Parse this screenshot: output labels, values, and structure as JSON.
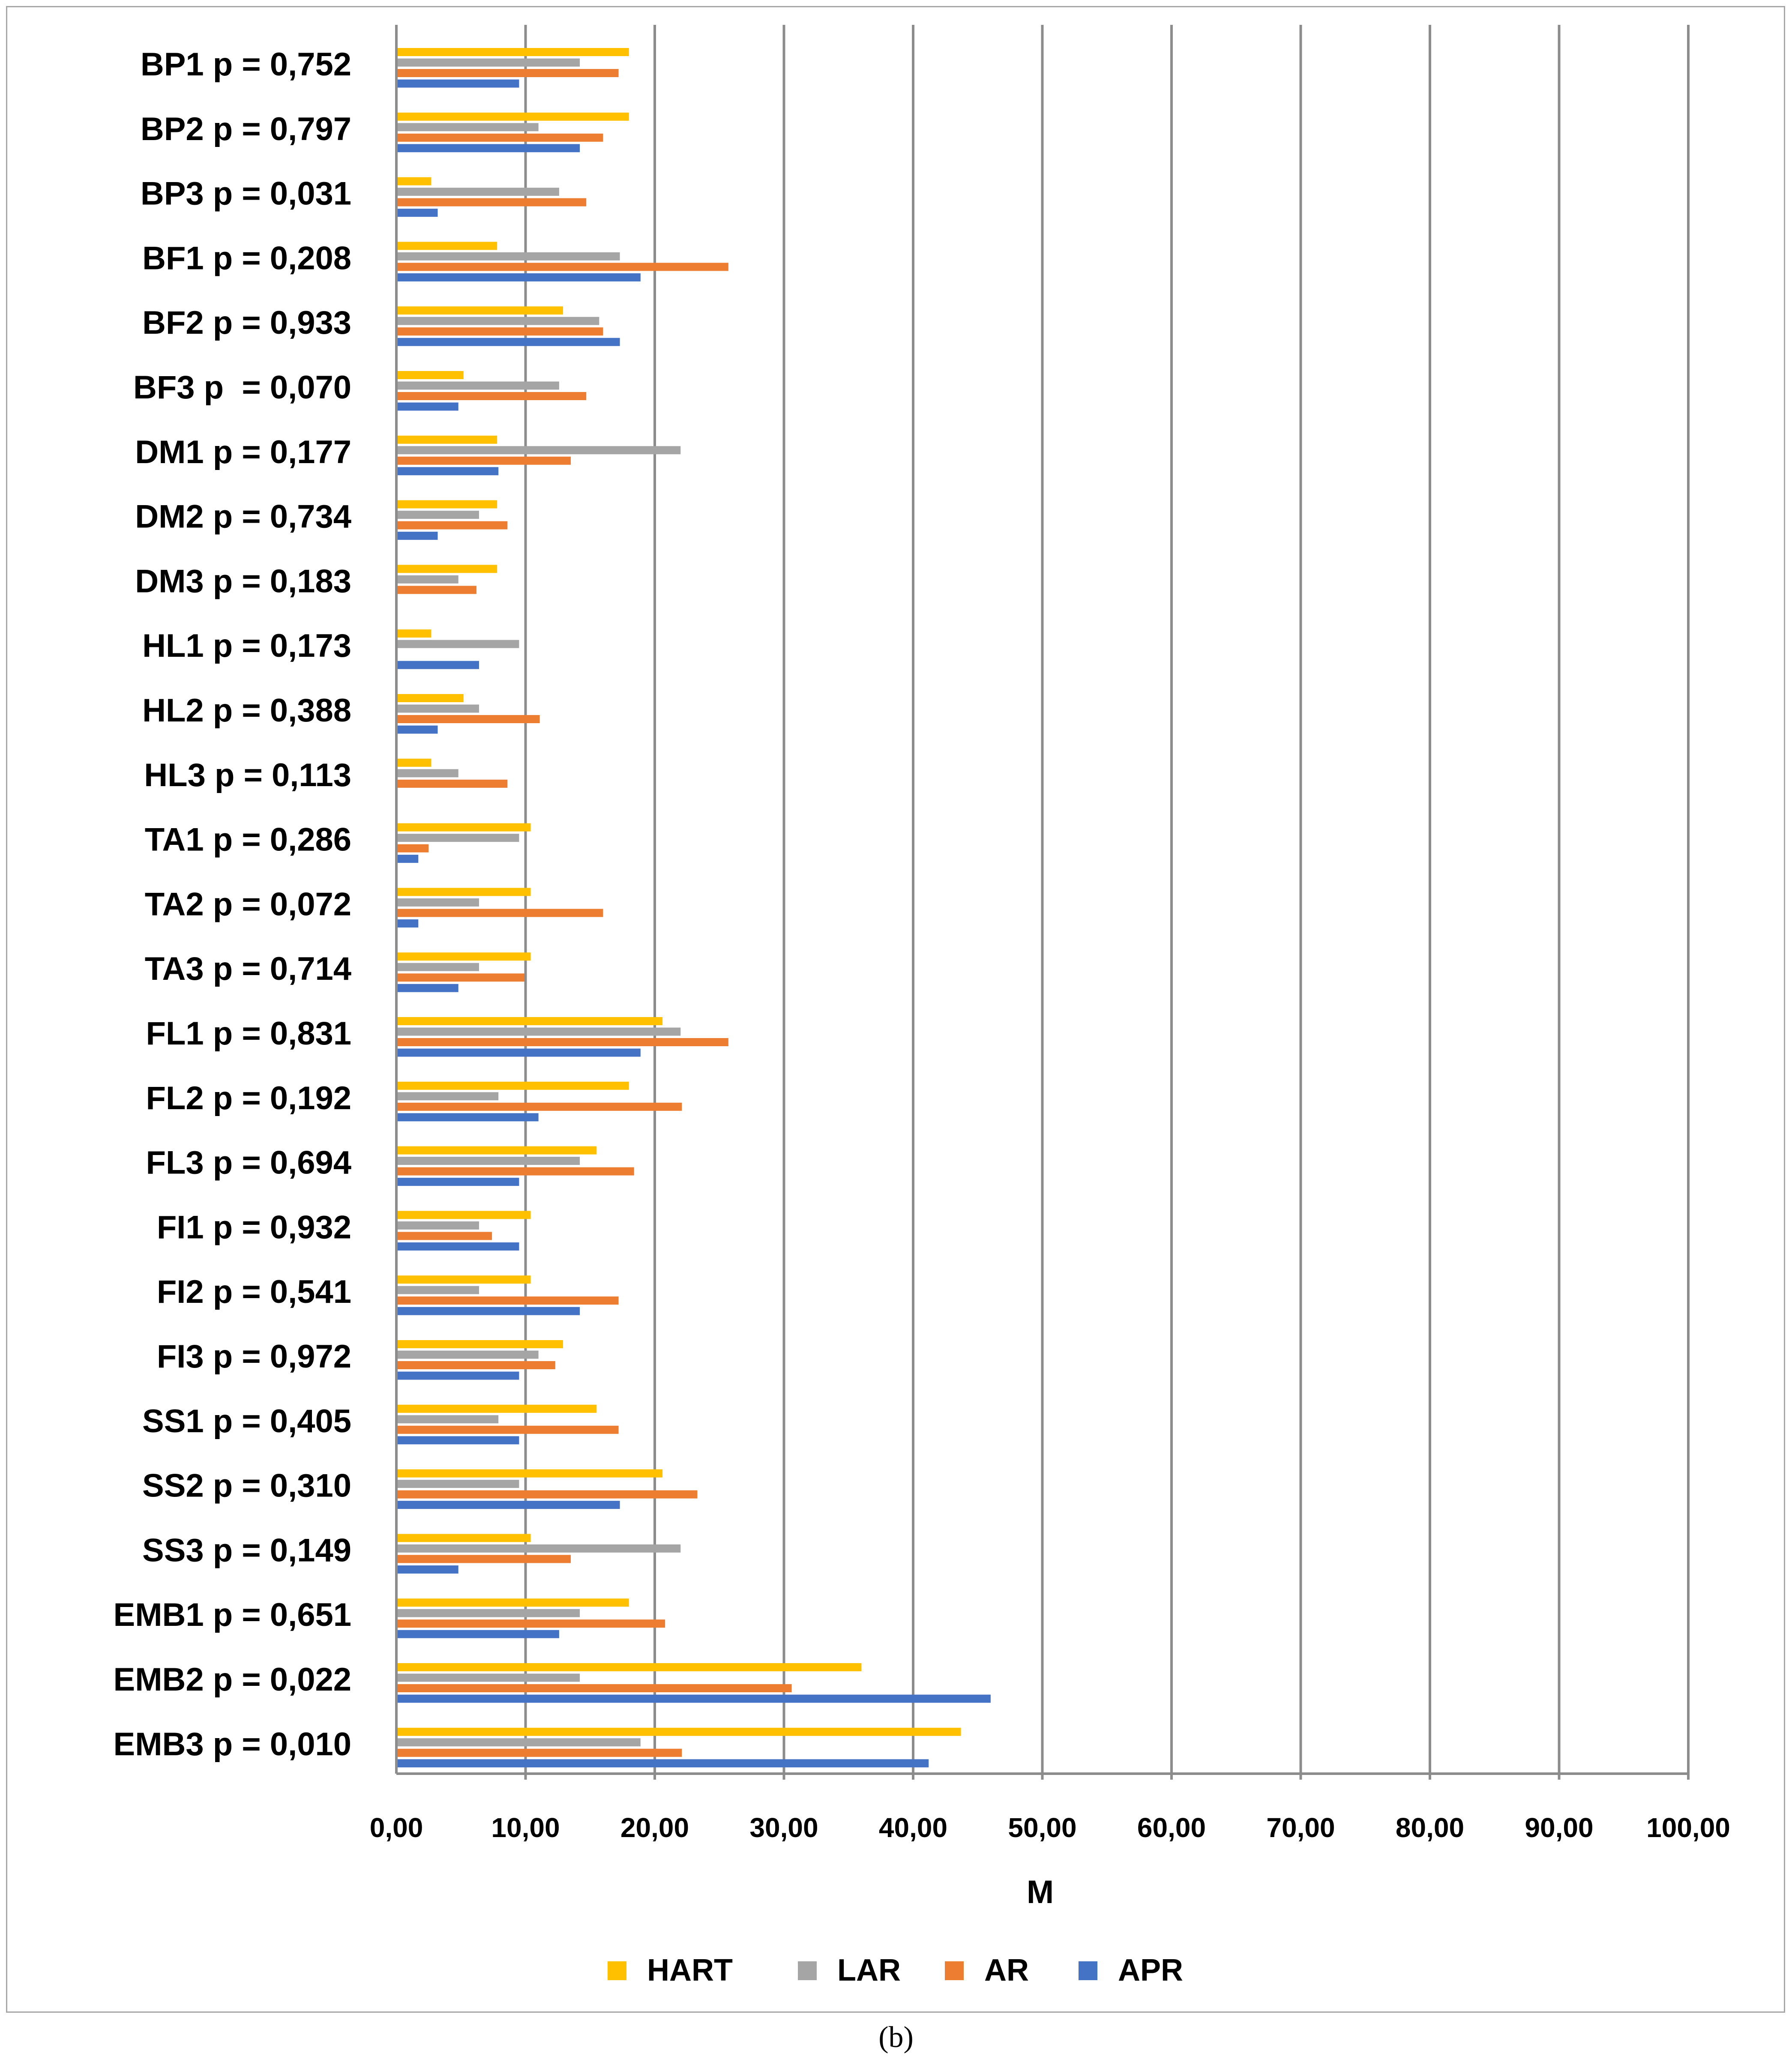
{
  "chart_data": {
    "type": "bar",
    "orientation": "horizontal",
    "title": "",
    "xlabel": "M",
    "ylabel": "",
    "xlim": [
      0,
      100
    ],
    "xticks": [
      "0,00",
      "10,00",
      "20,00",
      "30,00",
      "40,00",
      "50,00",
      "60,00",
      "70,00",
      "80,00",
      "90,00",
      "100,00"
    ],
    "grid": "vertical",
    "legend_position": "bottom",
    "categories": [
      "BP1 p = 0,752",
      "BP2 p = 0,797",
      "BP3 p = 0,031",
      "BF1 p = 0,208",
      "BF2 p = 0,933",
      "BF3 p  = 0,070",
      "DM1 p = 0,177",
      "DM2 p = 0,734",
      "DM3 p = 0,183",
      "HL1 p = 0,173",
      "HL2 p = 0,388",
      "HL3 p = 0,113",
      "TA1 p = 0,286",
      "TA2 p = 0,072",
      "TA3 p = 0,714",
      "FL1 p = 0,831",
      "FL2 p = 0,192",
      "FL3 p = 0,694",
      "FI1 p = 0,932",
      "FI2 p = 0,541",
      "FI3 p = 0,972",
      "SS1 p = 0,405",
      "SS2 p = 0,310",
      "SS3 p = 0,149",
      "EMB1 p = 0,651",
      "EMB2 p = 0,022",
      "EMB3 p = 0,010"
    ],
    "series": [
      {
        "name": "HART",
        "color": "#ffc000",
        "values": [
          17.9,
          17.9,
          2.6,
          7.7,
          12.8,
          5.1,
          7.7,
          7.7,
          7.7,
          2.6,
          5.1,
          2.6,
          10.3,
          10.3,
          10.3,
          20.5,
          17.9,
          15.4,
          10.3,
          10.3,
          12.8,
          15.4,
          20.5,
          10.3,
          17.9,
          35.9,
          43.6
        ]
      },
      {
        "name": "LAR",
        "color": "#a5a5a5",
        "values": [
          14.1,
          10.9,
          12.5,
          17.2,
          15.6,
          12.5,
          21.9,
          6.3,
          4.7,
          9.4,
          6.3,
          4.7,
          9.4,
          6.3,
          6.3,
          21.9,
          7.8,
          14.1,
          6.3,
          6.3,
          10.9,
          7.8,
          9.4,
          21.9,
          14.1,
          14.1,
          18.8
        ]
      },
      {
        "name": "AR",
        "color": "#ed7d31",
        "values": [
          17.1,
          15.9,
          14.6,
          25.6,
          15.9,
          14.6,
          13.4,
          8.5,
          6.1,
          0,
          11.0,
          8.5,
          2.4,
          15.9,
          9.8,
          25.6,
          22.0,
          18.3,
          7.3,
          17.1,
          12.2,
          17.1,
          23.2,
          13.4,
          20.7,
          30.5,
          22.0
        ]
      },
      {
        "name": "APR",
        "color": "#4472c4",
        "values": [
          9.4,
          14.1,
          3.1,
          18.8,
          17.2,
          4.7,
          7.8,
          3.1,
          0,
          6.3,
          3.1,
          0,
          1.6,
          1.6,
          4.7,
          18.8,
          10.9,
          9.4,
          9.4,
          14.1,
          9.4,
          9.4,
          17.2,
          4.7,
          12.5,
          45.9,
          41.1
        ]
      }
    ]
  },
  "caption": "(b)"
}
